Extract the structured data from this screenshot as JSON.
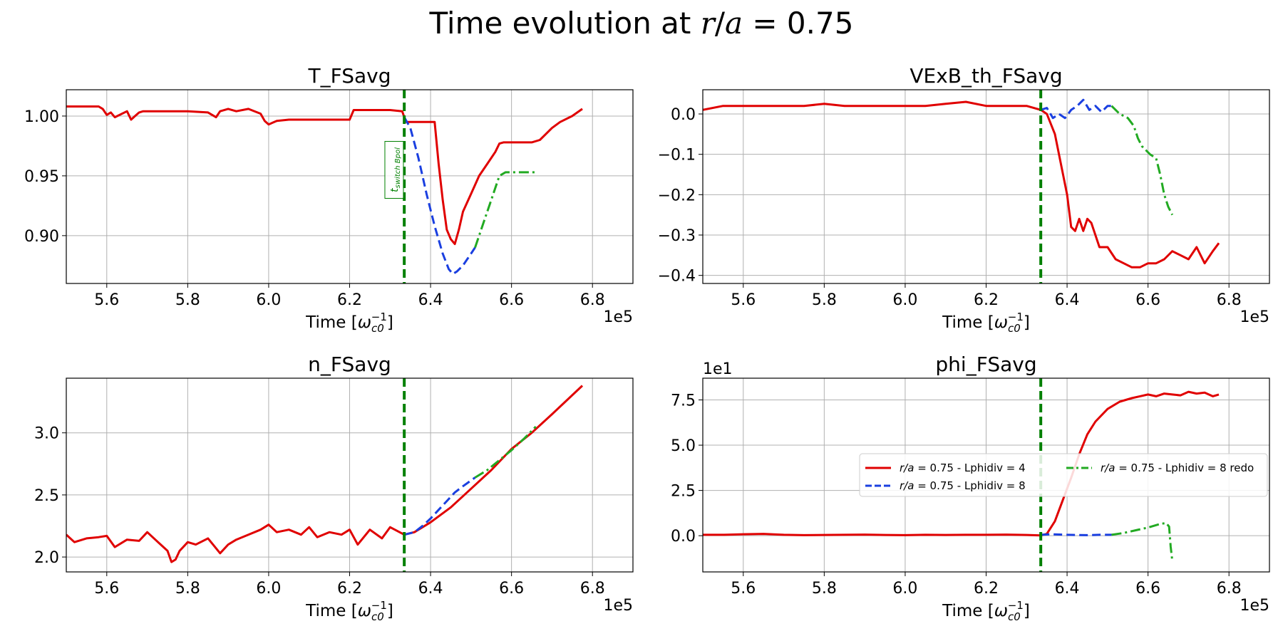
{
  "figure": {
    "suptitle": "Time evolution at r/a = 0.75",
    "vline_x": 633500,
    "vline_color": "#008000",
    "colors": {
      "lphidiv4": "#e00000",
      "lphidiv8": "#1a3fe0",
      "redo": "#22aa22"
    }
  },
  "chart_data": [
    {
      "type": "line",
      "title": "T_FSavg",
      "xlabel": "Time [ω_c0^-1]",
      "x_offset_label": "1e5",
      "y_offset_label": "",
      "xlim": [
        550000,
        690000
      ],
      "ylim": [
        0.86,
        1.022
      ],
      "xticks": [
        "5.6",
        "5.8",
        "6.0",
        "6.2",
        "6.4",
        "6.6",
        "6.8"
      ],
      "xtick_values": [
        560000,
        580000,
        600000,
        620000,
        640000,
        660000,
        680000
      ],
      "yticks": [
        "0.90",
        "0.95",
        "1.00"
      ],
      "ytick_values": [
        0.9,
        0.95,
        1.0
      ],
      "annotation": {
        "text": "t_switch Bpol",
        "x": 631000,
        "y": 0.955
      },
      "series": [
        {
          "key": "lphidiv4",
          "style": "solid",
          "x": [
            550000,
            553000,
            558000,
            559000,
            560000,
            561000,
            562000,
            565000,
            566000,
            567000,
            568000,
            569000,
            570000,
            575000,
            580000,
            585000,
            587000,
            588000,
            590000,
            592000,
            595000,
            598000,
            599000,
            600000,
            602000,
            605000,
            610000,
            615000,
            620000,
            621000,
            622000,
            625000,
            630000,
            633000,
            633500,
            634000,
            637000,
            639000,
            641000,
            642000,
            643000,
            644000,
            645000,
            646000,
            647000,
            648000,
            650000,
            652000,
            654000,
            656000,
            657000,
            658000,
            660000,
            665000,
            667000,
            670000,
            672000,
            675000,
            677500
          ],
          "y": [
            1.008,
            1.008,
            1.008,
            1.006,
            1.001,
            1.003,
            0.999,
            1.004,
            0.997,
            1.0,
            1.003,
            1.004,
            1.004,
            1.004,
            1.004,
            1.003,
            0.999,
            1.004,
            1.006,
            1.004,
            1.006,
            1.002,
            0.996,
            0.993,
            0.996,
            0.997,
            0.997,
            0.997,
            0.997,
            1.005,
            1.005,
            1.005,
            1.005,
            1.004,
            0.999,
            0.995,
            0.995,
            0.995,
            0.995,
            0.96,
            0.93,
            0.905,
            0.897,
            0.893,
            0.905,
            0.92,
            0.935,
            0.95,
            0.96,
            0.97,
            0.977,
            0.978,
            0.978,
            0.978,
            0.98,
            0.99,
            0.995,
            1.0,
            1.006
          ]
        },
        {
          "key": "lphidiv8",
          "style": "dashed",
          "x": [
            633500,
            635000,
            637000,
            639000,
            641000,
            643000,
            644500,
            645500,
            646500,
            648000,
            650000,
            651000
          ],
          "y": [
            0.999,
            0.99,
            0.965,
            0.935,
            0.908,
            0.885,
            0.872,
            0.868,
            0.87,
            0.875,
            0.885,
            0.89
          ]
        },
        {
          "key": "redo",
          "style": "dashdot",
          "x": [
            651000,
            653000,
            655000,
            657000,
            658500,
            660000,
            662000,
            664000,
            666000
          ],
          "y": [
            0.89,
            0.91,
            0.93,
            0.95,
            0.953,
            0.953,
            0.953,
            0.953,
            0.953
          ]
        }
      ]
    },
    {
      "type": "line",
      "title": "VExB_th_FSavg",
      "xlabel": "Time [ω_c0^-1]",
      "x_offset_label": "1e5",
      "y_offset_label": "",
      "xlim": [
        550000,
        690000
      ],
      "ylim": [
        -0.42,
        0.06
      ],
      "xticks": [
        "5.6",
        "5.8",
        "6.0",
        "6.2",
        "6.4",
        "6.6",
        "6.8"
      ],
      "xtick_values": [
        560000,
        580000,
        600000,
        620000,
        640000,
        660000,
        680000
      ],
      "yticks": [
        "−0.4",
        "−0.3",
        "−0.2",
        "−0.1",
        "0.0"
      ],
      "ytick_values": [
        -0.4,
        -0.3,
        -0.2,
        -0.1,
        0.0
      ],
      "series": [
        {
          "key": "lphidiv4",
          "style": "solid",
          "x": [
            550000,
            555000,
            560000,
            565000,
            570000,
            575000,
            580000,
            585000,
            590000,
            595000,
            600000,
            605000,
            610000,
            615000,
            620000,
            625000,
            630000,
            633500,
            635000,
            637000,
            639000,
            640000,
            641000,
            642000,
            643000,
            644000,
            645000,
            646000,
            647000,
            648000,
            650000,
            652000,
            654000,
            656000,
            658000,
            660000,
            662000,
            664000,
            666000,
            668000,
            670000,
            672000,
            674000,
            676000,
            677500
          ],
          "y": [
            0.01,
            0.02,
            0.02,
            0.02,
            0.02,
            0.02,
            0.025,
            0.02,
            0.02,
            0.02,
            0.02,
            0.02,
            0.025,
            0.03,
            0.02,
            0.02,
            0.02,
            0.01,
            0.0,
            -0.05,
            -0.15,
            -0.2,
            -0.28,
            -0.29,
            -0.26,
            -0.29,
            -0.26,
            -0.27,
            -0.3,
            -0.33,
            -0.33,
            -0.36,
            -0.37,
            -0.38,
            -0.38,
            -0.37,
            -0.37,
            -0.36,
            -0.34,
            -0.35,
            -0.36,
            -0.33,
            -0.37,
            -0.34,
            -0.32
          ]
        },
        {
          "key": "lphidiv8",
          "style": "dashed",
          "x": [
            633500,
            635000,
            636500,
            638000,
            639500,
            641000,
            642500,
            644000,
            645500,
            647000,
            648500,
            650000,
            651000
          ],
          "y": [
            0.01,
            0.015,
            -0.01,
            0.0,
            -0.01,
            0.01,
            0.02,
            0.035,
            0.01,
            0.02,
            0.005,
            0.02,
            0.02
          ]
        },
        {
          "key": "redo",
          "style": "dashdot",
          "x": [
            651000,
            653000,
            655000,
            656500,
            657500,
            658500,
            659500,
            660500,
            662000,
            663000,
            664000,
            665000,
            666000
          ],
          "y": [
            0.02,
            0.0,
            -0.01,
            -0.03,
            -0.06,
            -0.08,
            -0.09,
            -0.1,
            -0.11,
            -0.15,
            -0.2,
            -0.23,
            -0.25
          ]
        }
      ]
    },
    {
      "type": "line",
      "title": "n_FSavg",
      "xlabel": "Time [ω_c0^-1]",
      "x_offset_label": "1e5",
      "y_offset_label": "",
      "xlim": [
        550000,
        690000
      ],
      "ylim": [
        1.88,
        3.44
      ],
      "xticks": [
        "5.6",
        "5.8",
        "6.0",
        "6.2",
        "6.4",
        "6.6",
        "6.8"
      ],
      "xtick_values": [
        560000,
        580000,
        600000,
        620000,
        640000,
        660000,
        680000
      ],
      "yticks": [
        "2.0",
        "2.5",
        "3.0"
      ],
      "ytick_values": [
        2.0,
        2.5,
        3.0
      ],
      "series": [
        {
          "key": "lphidiv4",
          "style": "solid",
          "x": [
            550000,
            552000,
            555000,
            558000,
            560000,
            562000,
            565000,
            568000,
            570000,
            572000,
            575000,
            576000,
            577000,
            578000,
            580000,
            582000,
            585000,
            588000,
            590000,
            592000,
            595000,
            598000,
            600000,
            602000,
            605000,
            608000,
            610000,
            612000,
            615000,
            618000,
            620000,
            622000,
            625000,
            628000,
            630000,
            633500,
            636000,
            640000,
            645000,
            650000,
            655000,
            660000,
            665000,
            670000,
            677500
          ],
          "y": [
            2.18,
            2.12,
            2.15,
            2.16,
            2.17,
            2.08,
            2.14,
            2.13,
            2.2,
            2.14,
            2.05,
            1.96,
            1.98,
            2.05,
            2.12,
            2.1,
            2.15,
            2.03,
            2.1,
            2.14,
            2.18,
            2.22,
            2.26,
            2.2,
            2.22,
            2.18,
            2.24,
            2.16,
            2.2,
            2.18,
            2.22,
            2.1,
            2.22,
            2.15,
            2.24,
            2.18,
            2.2,
            2.28,
            2.4,
            2.55,
            2.7,
            2.87,
            3.0,
            3.15,
            3.38
          ]
        },
        {
          "key": "lphidiv8",
          "style": "dashed",
          "x": [
            633500,
            636000,
            638000,
            640000,
            642000,
            644000,
            646000,
            648000,
            651000
          ],
          "y": [
            2.18,
            2.2,
            2.25,
            2.31,
            2.38,
            2.45,
            2.52,
            2.57,
            2.64
          ]
        },
        {
          "key": "redo",
          "style": "dashdot",
          "x": [
            651000,
            654000,
            657000,
            660000,
            663000,
            666000
          ],
          "y": [
            2.64,
            2.7,
            2.78,
            2.86,
            2.95,
            3.05
          ]
        }
      ]
    },
    {
      "type": "line",
      "title": "phi_FSavg",
      "xlabel": "Time [ω_c0^-1]",
      "x_offset_label": "1e5",
      "y_offset_label": "1e1",
      "xlim": [
        550000,
        690000
      ],
      "ylim": [
        -2.0,
        8.7
      ],
      "xticks": [
        "5.6",
        "5.8",
        "6.0",
        "6.2",
        "6.4",
        "6.6",
        "6.8"
      ],
      "xtick_values": [
        560000,
        580000,
        600000,
        620000,
        640000,
        660000,
        680000
      ],
      "yticks": [
        "0.0",
        "2.5",
        "5.0",
        "7.5"
      ],
      "ytick_values": [
        0.0,
        2.5,
        5.0,
        7.5
      ],
      "legend": {
        "placement": "center-right",
        "ncol": 2
      },
      "series": [
        {
          "key": "lphidiv4",
          "style": "solid",
          "name": "r/a = 0.75 - Lphidiv = 4",
          "x": [
            550000,
            555000,
            560000,
            565000,
            570000,
            575000,
            580000,
            585000,
            590000,
            595000,
            600000,
            605000,
            610000,
            615000,
            620000,
            625000,
            630000,
            633500,
            635000,
            637000,
            639000,
            641000,
            643000,
            645000,
            647000,
            650000,
            653000,
            656000,
            658000,
            660000,
            662000,
            664000,
            666000,
            668000,
            670000,
            672000,
            674000,
            676000,
            677500
          ],
          "y": [
            0.05,
            0.05,
            0.08,
            0.1,
            0.05,
            0.03,
            0.04,
            0.05,
            0.06,
            0.04,
            0.03,
            0.05,
            0.04,
            0.05,
            0.05,
            0.06,
            0.04,
            0.02,
            0.1,
            0.8,
            2.0,
            3.2,
            4.5,
            5.6,
            6.3,
            7.0,
            7.4,
            7.6,
            7.7,
            7.8,
            7.7,
            7.85,
            7.8,
            7.75,
            7.95,
            7.85,
            7.9,
            7.7,
            7.8
          ]
        },
        {
          "key": "lphidiv8",
          "style": "dashed",
          "name": "r/a = 0.75 - Lphidiv = 8",
          "x": [
            633500,
            636000,
            640000,
            645000,
            648000,
            651000
          ],
          "y": [
            0.05,
            0.08,
            0.05,
            0.03,
            0.05,
            0.05
          ]
        },
        {
          "key": "redo",
          "style": "dashdot",
          "name": "r/a = 0.75 - Lphidiv = 8 redo",
          "x": [
            651000,
            654000,
            657000,
            660000,
            663000,
            664500,
            665200,
            665600,
            666000
          ],
          "y": [
            0.05,
            0.15,
            0.3,
            0.45,
            0.65,
            0.7,
            0.5,
            -0.6,
            -1.4
          ]
        }
      ]
    }
  ]
}
